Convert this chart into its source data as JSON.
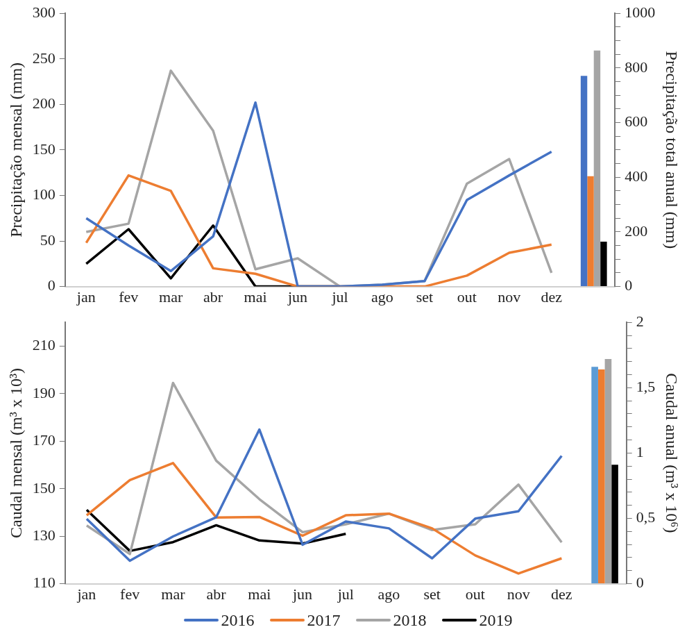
{
  "chart_data": [
    {
      "type": "line",
      "ylabel": "Precipitação mensal (mm)",
      "y2label": "Precipitação total anual (mm)",
      "categories": [
        "jan",
        "fev",
        "mar",
        "abr",
        "mai",
        "jun",
        "jul",
        "ago",
        "set",
        "out",
        "nov",
        "dez",
        null
      ],
      "series": [
        {
          "color": "#4472c4",
          "values": [
            75,
            45,
            17,
            55,
            202,
            0,
            0,
            2,
            6,
            95,
            122,
            148,
            null
          ]
        },
        {
          "color": "#ed7d31",
          "values": [
            48,
            122,
            105,
            20,
            14,
            0,
            0,
            0,
            0,
            12,
            37,
            46,
            null
          ]
        },
        {
          "color": "#a5a5a5",
          "values": [
            60,
            69,
            237,
            171,
            19,
            31,
            0,
            2,
            6,
            113,
            140,
            15,
            null
          ]
        },
        {
          "color": "#000000",
          "values": [
            25,
            63,
            9,
            67,
            0,
            0,
            0,
            null,
            null,
            null,
            null,
            null,
            null
          ]
        },
        {
          "type": "bar",
          "axis": "y2",
          "color": "#4472c4",
          "values": [
            null,
            null,
            null,
            null,
            null,
            null,
            null,
            null,
            null,
            null,
            null,
            null,
            771
          ]
        },
        {
          "type": "bar",
          "axis": "y2",
          "color": "#ed7d31",
          "values": [
            null,
            null,
            null,
            null,
            null,
            null,
            null,
            null,
            null,
            null,
            null,
            null,
            404
          ]
        },
        {
          "type": "bar",
          "axis": "y2",
          "color": "#a5a5a5",
          "values": [
            null,
            null,
            null,
            null,
            null,
            null,
            null,
            null,
            null,
            null,
            null,
            null,
            864
          ]
        },
        {
          "type": "bar",
          "axis": "y2",
          "color": "#000000",
          "values": [
            null,
            null,
            null,
            null,
            null,
            null,
            null,
            null,
            null,
            null,
            null,
            null,
            164
          ]
        }
      ],
      "ylim": [
        0,
        300
      ],
      "yticks": [
        0,
        50,
        100,
        150,
        200,
        250,
        300
      ],
      "y2lim": [
        0,
        1000
      ],
      "y2ticks": [
        0,
        {
          "value": 50,
          "label": null
        },
        {
          "value": 100,
          "label": null
        },
        {
          "value": 150,
          "label": null
        },
        200,
        {
          "value": 250,
          "label": null
        },
        {
          "value": 300,
          "label": null
        },
        {
          "value": 350,
          "label": null
        },
        400,
        {
          "value": 450,
          "label": null
        },
        {
          "value": 500,
          "label": null
        },
        {
          "value": 550,
          "label": null
        },
        600,
        {
          "value": 650,
          "label": null
        },
        {
          "value": 700,
          "label": null
        },
        {
          "value": 750,
          "label": null
        },
        800,
        {
          "value": 850,
          "label": null
        },
        {
          "value": 900,
          "label": null
        },
        {
          "value": 950,
          "label": null
        },
        1000
      ],
      "legend": false,
      "marker": "none",
      "line_style": "solid"
    },
    {
      "type": "line",
      "ylabel": "Caudal mensal (m³ x 10³)",
      "y2label": "Caudal anual (m³ x 10⁶)",
      "categories": [
        "jan",
        "fev",
        "mar",
        "abr",
        "mai",
        "jun",
        "jul",
        "ago",
        "set",
        "out",
        "nov",
        "dez",
        null
      ],
      "series": [
        {
          "name": "2016",
          "color": "#4472c4",
          "values": [
            137.3,
            119.7,
            129.9,
            138,
            174.9,
            126.4,
            136.2,
            133.3,
            120.7,
            137.4,
            140.5,
            163.8,
            null
          ]
        },
        {
          "name": "2017",
          "color": "#ed7d31",
          "values": [
            138.8,
            153.6,
            160.8,
            137.9,
            138.1,
            130.2,
            138.8,
            139.5,
            133.3,
            121.9,
            114.3,
            120.7,
            null
          ]
        },
        {
          "name": "2018",
          "color": "#a5a5a5",
          "values": [
            134.5,
            122.5,
            194.5,
            161.8,
            145.6,
            131.7,
            135,
            139.5,
            132.6,
            135,
            151.7,
            127.4,
            null
          ]
        },
        {
          "name": "2019",
          "color": "#000000",
          "values": [
            141.1,
            123.8,
            127.5,
            134.6,
            128.2,
            126.9,
            131,
            null,
            null,
            null,
            null,
            null,
            null
          ]
        },
        {
          "type": "bar",
          "axis": "y2",
          "color": "#5b9bd5",
          "values": [
            null,
            null,
            null,
            null,
            null,
            null,
            null,
            null,
            null,
            null,
            null,
            null,
            1.66
          ]
        },
        {
          "type": "bar",
          "axis": "y2",
          "color": "#ed7d31",
          "values": [
            null,
            null,
            null,
            null,
            null,
            null,
            null,
            null,
            null,
            null,
            null,
            null,
            1.64
          ]
        },
        {
          "type": "bar",
          "axis": "y2",
          "color": "#a5a5a5",
          "values": [
            null,
            null,
            null,
            null,
            null,
            null,
            null,
            null,
            null,
            null,
            null,
            null,
            1.72
          ]
        },
        {
          "type": "bar",
          "axis": "y2",
          "color": "#000000",
          "values": [
            null,
            null,
            null,
            null,
            null,
            null,
            null,
            null,
            null,
            null,
            null,
            null,
            0.91
          ]
        }
      ],
      "ylim": [
        110,
        220
      ],
      "yticks": [
        110,
        130,
        150,
        170,
        190,
        210
      ],
      "y2lim": [
        0,
        2
      ],
      "y2ticks": [
        0,
        {
          "value": 0.1,
          "label": null
        },
        {
          "value": 0.2,
          "label": null
        },
        {
          "value": 0.3,
          "label": null
        },
        {
          "value": 0.4,
          "label": null
        },
        {
          "value": 0.5,
          "label": "0,5"
        },
        {
          "value": 0.6,
          "label": null
        },
        {
          "value": 0.7,
          "label": null
        },
        {
          "value": 0.8,
          "label": null
        },
        {
          "value": 0.9,
          "label": null
        },
        1,
        {
          "value": 1.1,
          "label": null
        },
        {
          "value": 1.2,
          "label": null
        },
        {
          "value": 1.3,
          "label": null
        },
        {
          "value": 1.4,
          "label": null
        },
        {
          "value": 1.5,
          "label": "1,5"
        },
        {
          "value": 1.6,
          "label": null
        },
        {
          "value": 1.7,
          "label": null
        },
        {
          "value": 1.8,
          "label": null
        },
        {
          "value": 1.9,
          "label": null
        },
        2
      ],
      "legend": "bottom",
      "marker": "none",
      "line_style": "solid"
    }
  ]
}
